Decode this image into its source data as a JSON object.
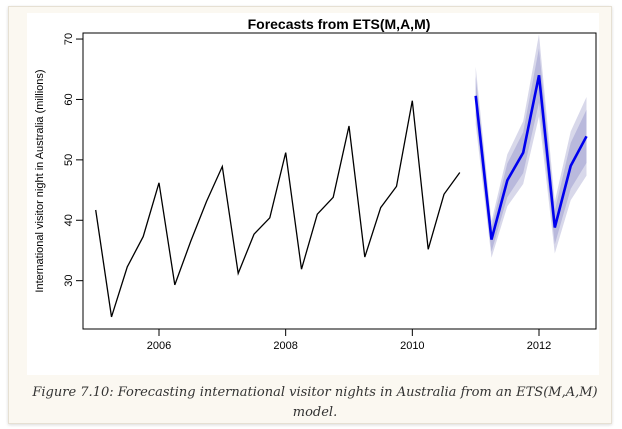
{
  "figure_caption": "Figure 7.10: Forecasting international visitor nights in Australia from an ETS(M,A,M) model.",
  "colors": {
    "history_line": "#000000",
    "forecast_line": "#0000ee",
    "band_outer": "#d8d8ea",
    "band_inner": "#b9b9dc"
  },
  "chart_data": {
    "type": "line",
    "title": "Forecasts from ETS(M,A,M)",
    "xlabel": "",
    "ylabel": "International visitor night in Australia (millions)",
    "xlim": [
      2004.8,
      2012.9
    ],
    "ylim": [
      22,
      71
    ],
    "x_ticks": [
      2006,
      2008,
      2010,
      2012
    ],
    "x_tick_labels": [
      "2006",
      "2008",
      "2010",
      "2012"
    ],
    "y_ticks": [
      30,
      40,
      50,
      60,
      70
    ],
    "y_tick_labels": [
      "30",
      "40",
      "50",
      "60",
      "70"
    ],
    "series": [
      {
        "name": "observed",
        "x": [
          2005.0,
          2005.25,
          2005.5,
          2005.75,
          2006.0,
          2006.25,
          2006.5,
          2006.75,
          2007.0,
          2007.25,
          2007.5,
          2007.75,
          2008.0,
          2008.25,
          2008.5,
          2008.75,
          2009.0,
          2009.25,
          2009.5,
          2009.75,
          2010.0,
          2010.25,
          2010.5,
          2010.75
        ],
        "values": [
          41.7,
          24.0,
          32.3,
          37.3,
          46.2,
          29.3,
          36.5,
          43.1,
          48.9,
          31.2,
          37.7,
          40.4,
          51.2,
          31.9,
          41.0,
          43.8,
          55.6,
          33.9,
          42.1,
          45.6,
          59.8,
          35.2,
          44.3,
          47.9
        ]
      },
      {
        "name": "forecast",
        "x": [
          2011.0,
          2011.25,
          2011.5,
          2011.75,
          2012.0,
          2012.25,
          2012.5,
          2012.75
        ],
        "values": [
          60.6,
          36.8,
          46.6,
          51.2,
          64.0,
          38.8,
          49.0,
          53.9
        ],
        "lower_80": [
          57.4,
          34.8,
          43.8,
          47.8,
          59.5,
          36.0,
          45.2,
          49.5
        ],
        "upper_80": [
          63.8,
          38.8,
          49.4,
          54.6,
          68.5,
          41.6,
          52.8,
          58.3
        ],
        "lower_95": [
          55.8,
          33.8,
          42.3,
          46.0,
          57.2,
          34.5,
          43.3,
          47.4
        ],
        "upper_95": [
          65.4,
          39.8,
          50.9,
          56.4,
          70.8,
          43.1,
          54.7,
          60.4
        ]
      }
    ]
  }
}
